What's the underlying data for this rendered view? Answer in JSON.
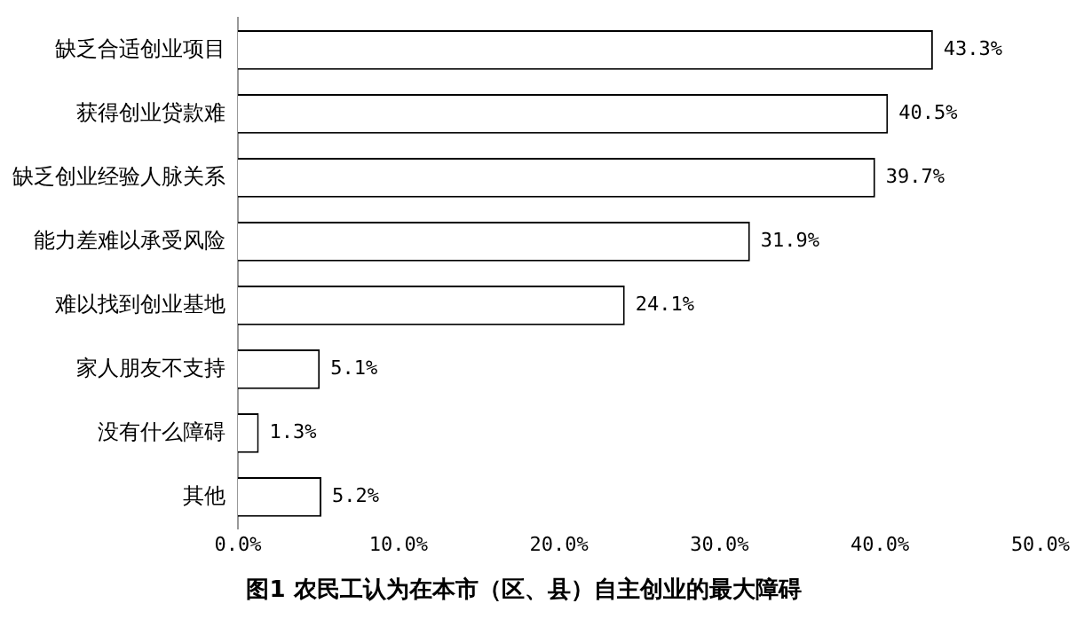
{
  "chart_data": {
    "type": "bar",
    "orientation": "horizontal",
    "title": "图1 农民工认为在本市（区、县）自主创业的最大障碍",
    "categories": [
      "缺乏合适创业项目",
      "获得创业贷款难",
      "缺乏创业经验人脉关系",
      "能力差难以承受风险",
      "难以找到创业基地",
      "家人朋友不支持",
      "没有什么障碍",
      "其他"
    ],
    "values": [
      43.3,
      40.5,
      39.7,
      31.9,
      24.1,
      5.1,
      1.3,
      5.2
    ],
    "value_labels": [
      "43.3%",
      "40.5%",
      "39.7%",
      "31.9%",
      "24.1%",
      "5.1%",
      "1.3%",
      "5.2%"
    ],
    "color": "#ffffff",
    "xlim": [
      0,
      50
    ],
    "xticks": [
      {
        "value": 0,
        "label": "0.0%"
      },
      {
        "value": 10,
        "label": "10.0%"
      },
      {
        "value": 20,
        "label": "20.0%"
      },
      {
        "value": 30,
        "label": "30.0%"
      },
      {
        "value": 40,
        "label": "40.0%"
      },
      {
        "value": 50,
        "label": "50.0%"
      }
    ],
    "grid": false,
    "legend": false
  }
}
